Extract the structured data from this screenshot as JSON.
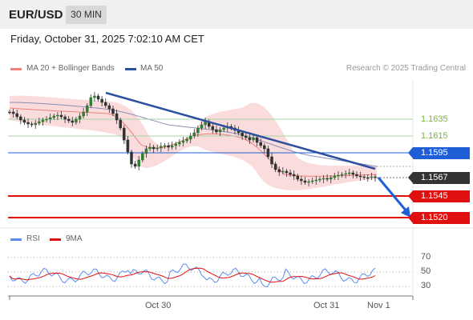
{
  "header": {
    "symbol": "EUR/USD",
    "timeframe": "30 MIN",
    "datetime": "Friday, October 31, 2025 7:02:10 AM CET"
  },
  "legend": {
    "items": [
      {
        "label": "MA 20 + Bollinger Bands",
        "color": "#f08080"
      },
      {
        "label": "MA 50",
        "color": "#2c4f9e"
      }
    ]
  },
  "copyright": "Research © 2025 Trading Central",
  "levels": {
    "r2": {
      "label": "1.1635",
      "color": "#7cb342"
    },
    "r1": {
      "label": "1.1615",
      "color": "#7cb342"
    },
    "pivot": {
      "label": "1.1595",
      "color": "#1e5fd8"
    },
    "last": {
      "label": "1.1567",
      "color": "#333333"
    },
    "s1": {
      "label": "1.1545",
      "color": "#e01010"
    },
    "s2": {
      "label": "1.1520",
      "color": "#e01010"
    }
  },
  "rsi_legend": {
    "items": [
      {
        "label": "RSI",
        "color": "#5b8def"
      },
      {
        "label": "9MA",
        "color": "#e01010"
      }
    ]
  },
  "rsi_ticks": [
    "70",
    "50",
    "30"
  ],
  "x_labels": [
    "Oct 30",
    "Oct 31",
    "Nov 1"
  ]
}
